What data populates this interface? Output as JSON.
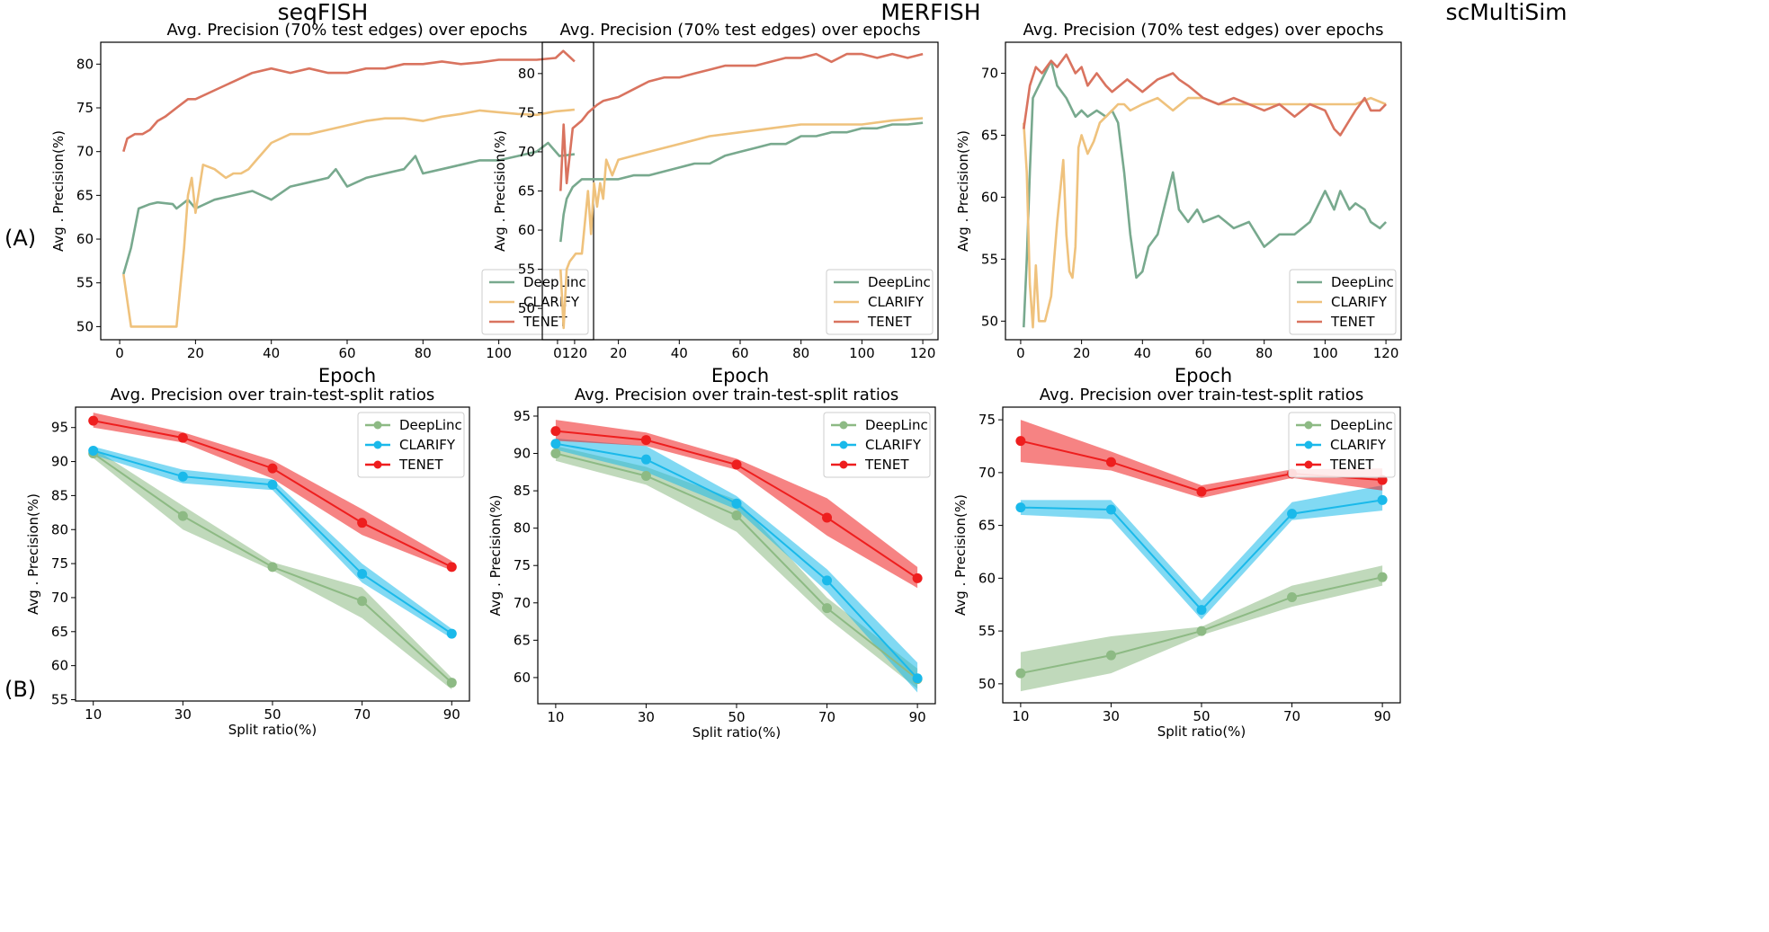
{
  "figure": {
    "datasets": [
      "seqFISH",
      "MERFISH",
      "scMultiSim"
    ],
    "row_labels": [
      "(A)",
      "(B)"
    ]
  },
  "colors": {
    "A": {
      "DeepLinc": "#78a98e",
      "CLARIFY": "#efc27d",
      "TENET": "#d9735f"
    },
    "B": {
      "DeepLinc": "#8dba84",
      "CLARIFY": "#1ab9ea",
      "TENET": "#ee1e1e"
    }
  },
  "chart_data": [
    {
      "type": "line",
      "dataset": "seqFISH",
      "title": "Avg. Precision (70% test edges) over epochs",
      "xlabel": "Epoch",
      "ylabel": "Avg . Precision(%)",
      "xlim": [
        -5,
        125
      ],
      "ylim": [
        48.5,
        82.5
      ],
      "xticks": [
        0,
        20,
        40,
        60,
        80,
        100,
        120
      ],
      "yticks": [
        50,
        55,
        60,
        65,
        70,
        75,
        80
      ],
      "legend": "bottom-right",
      "series": [
        {
          "name": "DeepLinc",
          "x": [
            1,
            3,
            5,
            8,
            10,
            14,
            15,
            18,
            20,
            25,
            30,
            35,
            40,
            45,
            50,
            55,
            57,
            60,
            65,
            70,
            75,
            78,
            80,
            85,
            90,
            95,
            100,
            105,
            110,
            113,
            116,
            120
          ],
          "y": [
            56,
            59,
            63.5,
            64,
            64.2,
            64,
            63.5,
            64.5,
            63.5,
            64.5,
            65,
            65.5,
            64.5,
            66,
            66.5,
            67,
            68,
            66,
            67,
            67.5,
            68,
            69.5,
            67.5,
            68,
            68.5,
            69,
            69,
            69.5,
            70,
            71,
            69.5,
            69.7
          ]
        },
        {
          "name": "CLARIFY",
          "x": [
            1,
            3,
            5,
            10,
            15,
            17,
            18,
            19,
            20,
            22,
            25,
            28,
            30,
            32,
            34,
            36,
            40,
            45,
            50,
            55,
            60,
            65,
            70,
            75,
            80,
            85,
            90,
            95,
            100,
            105,
            110,
            115,
            120
          ],
          "y": [
            56,
            50,
            50,
            50,
            50,
            59,
            65,
            67,
            63,
            68.5,
            68,
            67,
            67.5,
            67.5,
            68,
            69,
            71,
            72,
            72,
            72.5,
            73,
            73.5,
            73.8,
            73.8,
            73.5,
            74,
            74.3,
            74.7,
            74.5,
            74.3,
            74.2,
            74.6,
            74.8
          ]
        },
        {
          "name": "TENET",
          "x": [
            1,
            2,
            4,
            6,
            8,
            10,
            12,
            15,
            18,
            20,
            25,
            30,
            35,
            40,
            45,
            50,
            55,
            60,
            65,
            70,
            75,
            80,
            85,
            90,
            95,
            100,
            105,
            110,
            115,
            117,
            120
          ],
          "y": [
            70,
            71.5,
            72,
            72,
            72.5,
            73.5,
            74,
            75,
            76,
            76,
            77,
            78,
            79,
            79.5,
            79,
            79.5,
            79,
            79,
            79.5,
            79.5,
            80,
            80,
            80.3,
            80,
            80.2,
            80.5,
            80.5,
            80.5,
            80.7,
            81.5,
            80.3
          ]
        }
      ]
    },
    {
      "type": "line",
      "dataset": "MERFISH",
      "title": "Avg. Precision (70% test edges) over epochs",
      "xlabel": "Epoch",
      "ylabel": "Avg . Precision(%)",
      "xlim": [
        -5,
        125
      ],
      "ylim": [
        46,
        84
      ],
      "xticks": [
        0,
        20,
        40,
        60,
        80,
        100,
        120
      ],
      "yticks": [
        50,
        55,
        60,
        65,
        70,
        75,
        80
      ],
      "legend": "bottom-right",
      "series": [
        {
          "name": "DeepLinc",
          "x": [
            1,
            2,
            3,
            5,
            8,
            10,
            15,
            20,
            25,
            30,
            35,
            40,
            45,
            50,
            55,
            60,
            65,
            70,
            75,
            80,
            85,
            90,
            95,
            100,
            105,
            110,
            115,
            120
          ],
          "y": [
            58.5,
            62,
            64,
            65.5,
            66.5,
            66.5,
            66.5,
            66.5,
            67,
            67,
            67.5,
            68,
            68.5,
            68.5,
            69.5,
            70,
            70.5,
            71,
            71,
            72,
            72,
            72.5,
            72.5,
            73,
            73,
            73.5,
            73.5,
            73.7
          ]
        },
        {
          "name": "CLARIFY",
          "x": [
            1,
            2,
            3,
            4,
            6,
            8,
            10,
            11,
            12,
            13,
            14,
            15,
            16,
            18,
            20,
            25,
            30,
            40,
            50,
            60,
            70,
            80,
            90,
            100,
            110,
            120
          ],
          "y": [
            55,
            47.5,
            55,
            56,
            57,
            57,
            65,
            59.5,
            66,
            63,
            66,
            64,
            69,
            67,
            69,
            69.5,
            70,
            71,
            72,
            72.5,
            73,
            73.5,
            73.5,
            73.5,
            74,
            74.3
          ]
        },
        {
          "name": "TENET",
          "x": [
            1,
            2,
            3,
            5,
            8,
            10,
            13,
            15,
            20,
            25,
            30,
            35,
            40,
            45,
            50,
            55,
            60,
            65,
            70,
            75,
            80,
            85,
            90,
            95,
            100,
            105,
            110,
            115,
            120
          ],
          "y": [
            65,
            73.5,
            66,
            73,
            74,
            75,
            76,
            76.5,
            77,
            78,
            79,
            79.5,
            79.5,
            80,
            80.5,
            81,
            81,
            81,
            81.5,
            82,
            82,
            82.5,
            81.5,
            82.5,
            82.5,
            82,
            82.5,
            82,
            82.5
          ]
        }
      ]
    },
    {
      "type": "line",
      "dataset": "scMultiSim",
      "title": "Avg. Precision (70% test edges) over epochs",
      "xlabel": "Epoch",
      "ylabel": "Avg . Precision(%)",
      "xlim": [
        -5,
        125
      ],
      "ylim": [
        48.5,
        72.5
      ],
      "xticks": [
        0,
        20,
        40,
        60,
        80,
        100,
        120
      ],
      "yticks": [
        50,
        55,
        60,
        65,
        70
      ],
      "legend": "bottom-right",
      "series": [
        {
          "name": "DeepLinc",
          "x": [
            1,
            2,
            3,
            4,
            5,
            6,
            8,
            10,
            12,
            15,
            18,
            20,
            22,
            25,
            28,
            30,
            32,
            34,
            36,
            38,
            40,
            42,
            45,
            48,
            50,
            52,
            55,
            58,
            60,
            65,
            70,
            75,
            80,
            85,
            90,
            95,
            100,
            103,
            105,
            108,
            110,
            113,
            115,
            118,
            120
          ],
          "y": [
            49.5,
            55,
            62,
            68,
            68.5,
            69,
            70,
            71,
            69,
            68,
            66.5,
            67,
            66.5,
            67,
            66.5,
            67,
            66,
            62,
            57,
            53.5,
            54,
            56,
            57,
            60,
            62,
            59,
            58,
            59,
            58,
            58.5,
            57.5,
            58,
            56,
            57,
            57,
            58,
            60.5,
            59,
            60.5,
            59,
            59.5,
            59,
            58,
            57.5,
            58
          ]
        },
        {
          "name": "CLARIFY",
          "x": [
            1,
            2,
            3,
            4,
            5,
            6,
            8,
            10,
            12,
            14,
            15,
            16,
            17,
            18,
            19,
            20,
            22,
            24,
            26,
            28,
            30,
            32,
            34,
            36,
            40,
            45,
            50,
            55,
            60,
            65,
            70,
            80,
            90,
            100,
            110,
            115,
            120
          ],
          "y": [
            66,
            62,
            53,
            49.5,
            54.5,
            50,
            50,
            52,
            58,
            63,
            57,
            54,
            53.5,
            56,
            64,
            65,
            63.5,
            64.5,
            66,
            66.5,
            67,
            67.5,
            67.5,
            67,
            67.5,
            68,
            67,
            68,
            68,
            67.5,
            67.5,
            67.5,
            67.5,
            67.5,
            67.5,
            68,
            67.5
          ]
        },
        {
          "name": "TENET",
          "x": [
            1,
            3,
            5,
            7,
            10,
            12,
            15,
            18,
            20,
            22,
            25,
            28,
            30,
            35,
            40,
            45,
            50,
            52,
            55,
            60,
            65,
            70,
            75,
            80,
            85,
            90,
            95,
            100,
            103,
            105,
            110,
            113,
            115,
            118,
            120
          ],
          "y": [
            65.5,
            69,
            70.5,
            70,
            71,
            70.5,
            71.5,
            70,
            70.5,
            69,
            70,
            69,
            68.5,
            69.5,
            68.5,
            69.5,
            70,
            69.5,
            69,
            68,
            67.5,
            68,
            67.5,
            67,
            67.5,
            66.5,
            67.5,
            67,
            65.5,
            65,
            67,
            68,
            67,
            67,
            67.5
          ]
        }
      ]
    },
    {
      "type": "line",
      "dataset": "seqFISH",
      "title": "Avg. Precision over train-test-split ratios",
      "xlabel": "Split ratio(%)",
      "ylabel": "Avg . Precision(%)",
      "categories": [
        "10",
        "30",
        "50",
        "70",
        "90"
      ],
      "ylim": [
        54.8,
        98
      ],
      "yticks": [
        55,
        60,
        65,
        70,
        75,
        80,
        85,
        90,
        95
      ],
      "legend": "top-right",
      "series": [
        {
          "name": "DeepLinc",
          "values": [
            91.2,
            82,
            74.5,
            69.5,
            57.5
          ],
          "lower": [
            90.5,
            80,
            74,
            67,
            56.5
          ],
          "upper": [
            92,
            83.5,
            75.2,
            71.5,
            58.2
          ]
        },
        {
          "name": "CLARIFY",
          "values": [
            91.6,
            87.8,
            86.6,
            73.5,
            64.7
          ],
          "lower": [
            91,
            86.8,
            85.8,
            72.2,
            64
          ],
          "upper": [
            92.2,
            88.8,
            87.4,
            75,
            65.4
          ]
        },
        {
          "name": "TENET",
          "values": [
            96,
            93.5,
            89,
            81,
            74.5
          ],
          "lower": [
            95,
            92.8,
            87.5,
            79.2,
            74
          ],
          "upper": [
            97.2,
            94.3,
            90.2,
            83,
            75.4
          ]
        }
      ]
    },
    {
      "type": "line",
      "dataset": "MERFISH",
      "title": "Avg. Precision over train-test-split ratios",
      "xlabel": "Split ratio(%)",
      "ylabel": "Avg . Precision(%)",
      "categories": [
        "10",
        "30",
        "50",
        "70",
        "90"
      ],
      "ylim": [
        56.5,
        96.2
      ],
      "yticks": [
        60,
        65,
        70,
        75,
        80,
        85,
        90,
        95
      ],
      "legend": "top-right",
      "series": [
        {
          "name": "DeepLinc",
          "values": [
            90,
            87,
            81.7,
            69.3,
            59.8
          ],
          "lower": [
            89,
            85.8,
            79.5,
            68,
            58.5
          ],
          "upper": [
            91,
            88.2,
            83.8,
            70.7,
            61.2
          ]
        },
        {
          "name": "CLARIFY",
          "values": [
            91.3,
            89.2,
            83.3,
            73,
            59.9
          ],
          "lower": [
            90.5,
            87.5,
            82.5,
            71.5,
            58
          ],
          "upper": [
            92,
            91,
            84.3,
            74.5,
            62
          ]
        },
        {
          "name": "TENET",
          "values": [
            93,
            91.8,
            88.5,
            81.4,
            73.3
          ],
          "lower": [
            91.7,
            91,
            87.8,
            79,
            72
          ],
          "upper": [
            94.5,
            92.8,
            89.3,
            84,
            74.8
          ]
        }
      ]
    },
    {
      "type": "line",
      "dataset": "scMultiSim",
      "title": "Avg. Precision over train-test-split ratios",
      "xlabel": "Split ratio(%)",
      "ylabel": "Avg . Precision(%)",
      "categories": [
        "10",
        "30",
        "50",
        "70",
        "90"
      ],
      "ylim": [
        48.2,
        76.2
      ],
      "yticks": [
        50,
        55,
        60,
        65,
        70,
        75
      ],
      "legend": "top-right",
      "series": [
        {
          "name": "DeepLinc",
          "values": [
            51,
            52.7,
            55,
            58.2,
            60.1
          ],
          "lower": [
            49.3,
            51,
            54.6,
            57.3,
            59.3
          ],
          "upper": [
            53,
            54.5,
            55.4,
            59.3,
            61.2
          ]
        },
        {
          "name": "CLARIFY",
          "values": [
            66.7,
            66.5,
            57,
            66.1,
            67.4
          ],
          "lower": [
            66,
            65.6,
            56.1,
            65.5,
            66.4
          ],
          "upper": [
            67.4,
            67.4,
            57.9,
            67.2,
            68.8
          ]
        },
        {
          "name": "TENET",
          "values": [
            73,
            71,
            68.2,
            69.9,
            69.3
          ],
          "lower": [
            71,
            70.2,
            67.6,
            69.5,
            68.3
          ],
          "upper": [
            75,
            72,
            68.8,
            70.3,
            70.4
          ]
        }
      ]
    }
  ]
}
